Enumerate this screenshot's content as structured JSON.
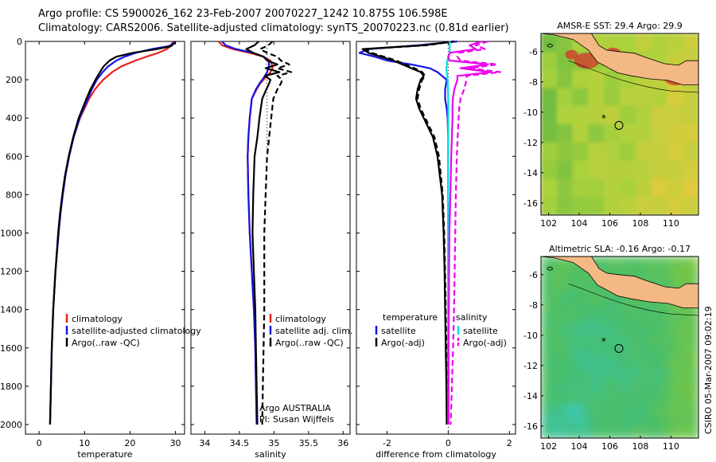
{
  "header": {
    "line1": "Argo profile: CS 5900026_162 23-Feb-2007 20070227_1242 10.875S 106.598E",
    "line2": "Climatology: CARS2006. Satellite-adjusted climatology: synTS_20070223.nc (0.81d earlier)"
  },
  "side_text": "CSIRO 05-Mar-2007 09:02:19",
  "colors": {
    "climatology": "#e6241e",
    "satellite": "#1414e6",
    "argo": "#000000",
    "salinity_satellite": "#00e0e0",
    "salinity_argo": "#ee00ee",
    "land": "#f4b884"
  },
  "chart_data": [
    {
      "type": "line",
      "id": "temperature",
      "xlabel": "temperature",
      "ylabel": "",
      "xlim": [
        -3,
        32
      ],
      "ylim": [
        2050,
        0
      ],
      "xticks": [
        0,
        10,
        20,
        30
      ],
      "xtick_labels": [
        "0",
        "10",
        "20",
        "30"
      ],
      "yticks": [
        0,
        200,
        400,
        600,
        800,
        1000,
        1200,
        1400,
        1600,
        1800,
        2000
      ],
      "ytick_labels": [
        "0",
        "200",
        "400",
        "600",
        "800",
        "1000",
        "1200",
        "1400",
        "1600",
        "1800",
        "2000"
      ],
      "depth": [
        0,
        10,
        25,
        40,
        60,
        80,
        100,
        130,
        160,
        200,
        250,
        300,
        400,
        500,
        600,
        700,
        800,
        900,
        1000,
        1200,
        1400,
        1600,
        1800,
        2000
      ],
      "series": [
        {
          "name": "climatology",
          "color": "#e6241e",
          "dash": "",
          "values": [
            29.5,
            29.3,
            28.9,
            28.1,
            26.2,
            23.6,
            21.2,
            18.1,
            16.1,
            14.1,
            12.3,
            11.0,
            9.0,
            7.6,
            6.6,
            5.8,
            5.2,
            4.7,
            4.3,
            3.6,
            3.1,
            2.8,
            2.6,
            2.4
          ]
        },
        {
          "name": "satellite-adjusted climatology",
          "color": "#1414e6",
          "dash": "",
          "values": [
            29.8,
            29.5,
            28.5,
            24.8,
            21.2,
            18.8,
            17.0,
            15.2,
            14.0,
            12.7,
            11.6,
            10.7,
            8.9,
            7.6,
            6.6,
            5.8,
            5.2,
            4.7,
            4.3,
            3.6,
            3.1,
            2.8,
            2.6,
            2.4
          ]
        },
        {
          "name": "Argo(..raw -QC)",
          "color": "#000000",
          "dash": "",
          "values": [
            29.9,
            29.7,
            29.0,
            26.0,
            20.5,
            17.0,
            15.5,
            14.2,
            13.4,
            12.4,
            11.3,
            10.4,
            8.7,
            7.5,
            6.5,
            5.7,
            5.1,
            4.6,
            4.2,
            3.6,
            3.1,
            2.8,
            2.6,
            2.4
          ]
        }
      ],
      "legend": {
        "position": "lower-center",
        "entries": [
          "climatology",
          "satellite-adjusted climatology",
          "Argo(..raw -QC)"
        ]
      }
    },
    {
      "type": "line",
      "id": "salinity",
      "xlabel": "salinity",
      "xlim": [
        33.8,
        36.1
      ],
      "ylim": [
        2050,
        0
      ],
      "xticks": [
        34,
        34.5,
        35,
        35.5,
        36
      ],
      "xtick_labels": [
        "34",
        "34.5",
        "35",
        "35.5",
        "36"
      ],
      "depth": [
        0,
        20,
        40,
        60,
        80,
        100,
        120,
        140,
        160,
        180,
        200,
        220,
        250,
        300,
        400,
        500,
        600,
        800,
        1000,
        1200,
        1400,
        1600,
        1800,
        2000
      ],
      "series": [
        {
          "name": "climatology",
          "color": "#e6241e",
          "dash": "",
          "values": [
            34.2,
            34.25,
            34.4,
            34.65,
            34.85,
            34.95,
            34.97,
            34.98,
            34.95,
            34.9,
            34.85,
            34.8,
            34.75,
            34.68,
            34.65,
            34.63,
            34.62,
            34.63,
            34.65,
            34.68,
            34.71,
            34.73,
            34.74,
            34.75
          ]
        },
        {
          "name": "satellite adj. clim.",
          "color": "#1414e6",
          "dash": "",
          "values": [
            34.25,
            34.3,
            34.45,
            34.7,
            34.85,
            34.92,
            34.93,
            34.92,
            34.9,
            34.87,
            34.83,
            34.79,
            34.74,
            34.68,
            34.65,
            34.63,
            34.62,
            34.63,
            34.65,
            34.68,
            34.71,
            34.73,
            34.74,
            34.75
          ]
        },
        {
          "name": "Argo(..raw -QC)",
          "color": "#000000",
          "dash": "",
          "values": [
            34.78,
            34.72,
            34.6,
            34.7,
            34.85,
            34.9,
            35.05,
            34.88,
            35.08,
            34.87,
            34.95,
            34.93,
            34.89,
            34.83,
            34.79,
            34.76,
            34.72,
            34.7,
            34.69,
            34.71,
            34.73,
            34.74,
            34.75,
            34.76
          ]
        },
        {
          "name": "Argo(-adj)",
          "color": "#000000",
          "dash": "7,4",
          "values": [
            34.98,
            34.92,
            34.8,
            34.9,
            35.05,
            35.1,
            35.22,
            35.05,
            35.25,
            35.05,
            35.12,
            35.1,
            35.05,
            34.99,
            34.96,
            34.93,
            34.9,
            34.88,
            34.86,
            34.86,
            34.86,
            34.85,
            34.84,
            34.83
          ]
        }
      ],
      "legend": {
        "position": "lower-right",
        "entries": [
          "climatology",
          "satellite adj. clim.",
          "Argo(..raw -QC)"
        ]
      },
      "annotation": [
        "Argo AUSTRALIA",
        "PI: Susan Wijffels"
      ]
    },
    {
      "type": "line",
      "id": "difference",
      "xlabel": "difference from climatology",
      "xlim": [
        -3,
        2.2
      ],
      "ylim": [
        2050,
        0
      ],
      "xticks": [
        -2,
        0,
        2
      ],
      "xtick_labels": [
        "-2",
        "0",
        "2"
      ],
      "depth": [
        0,
        20,
        40,
        60,
        80,
        100,
        120,
        140,
        160,
        180,
        200,
        250,
        300,
        350,
        400,
        500,
        600,
        800,
        1000,
        1200,
        1400,
        1600,
        1800,
        2000
      ],
      "series": [
        {
          "name": "temperature satellite",
          "color": "#1414e6",
          "dash": "",
          "values": [
            0.3,
            -1.0,
            -2.6,
            -2.9,
            -2.4,
            -2.0,
            -1.2,
            -0.6,
            -0.35,
            -0.2,
            -0.05,
            -0.1,
            -0.1,
            -0.05,
            -0.02,
            0.0,
            0.0,
            0.0,
            0.0,
            0.0,
            0.0,
            0.0,
            0.0,
            0.0
          ]
        },
        {
          "name": "temperature Argo(-adj)",
          "color": "#000000",
          "dash": "",
          "values": [
            0.2,
            -0.8,
            -2.8,
            -2.6,
            -2.2,
            -1.8,
            -1.5,
            -1.2,
            -0.9,
            -0.8,
            -0.9,
            -1.0,
            -1.05,
            -0.95,
            -0.8,
            -0.5,
            -0.35,
            -0.2,
            -0.15,
            -0.12,
            -0.1,
            -0.08,
            -0.06,
            -0.05
          ]
        },
        {
          "name": "temperature Argo(..raw -QC)",
          "color": "#000000",
          "dash": "7,4",
          "values": [
            0.2,
            -0.7,
            -2.7,
            -2.5,
            -2.1,
            -1.7,
            -1.4,
            -1.1,
            -0.85,
            -0.75,
            -0.85,
            -0.95,
            -1.0,
            -0.9,
            -0.75,
            -0.45,
            -0.3,
            -0.18,
            -0.13,
            -0.1,
            -0.08,
            -0.06,
            -0.05,
            -0.04
          ]
        },
        {
          "name": "salinity satellite",
          "color": "#00e0e0",
          "dash": "",
          "values": [
            0.05,
            0.05,
            0.05,
            0.05,
            0.0,
            -0.03,
            -0.04,
            -0.06,
            -0.05,
            -0.03,
            -0.02,
            -0.01,
            0.0,
            0.0,
            0.0,
            0.0,
            0.0,
            0.0,
            0.0,
            0.0,
            0.0,
            0.0,
            0.0,
            0.0
          ]
        },
        {
          "name": "salinity Argo(..raw -QC)",
          "color": "#ee00ee",
          "dash": "",
          "values": [
            1.1,
            0.7,
            0.9,
            0.05,
            0.0,
            0.05,
            1.3,
            0.4,
            1.4,
            0.3,
            0.3,
            0.2,
            0.15,
            0.14,
            0.14,
            0.12,
            0.1,
            0.07,
            0.04,
            0.03,
            0.02,
            0.01,
            0.01,
            0.01
          ]
        },
        {
          "name": "salinity Argo(-adj)",
          "color": "#ee00ee",
          "dash": "7,4",
          "values": [
            1.3,
            0.9,
            1.2,
            0.35,
            0.3,
            0.4,
            1.6,
            0.7,
            1.7,
            0.6,
            0.6,
            0.52,
            0.4,
            0.36,
            0.34,
            0.31,
            0.28,
            0.25,
            0.23,
            0.21,
            0.19,
            0.16,
            0.12,
            0.08
          ]
        }
      ],
      "legend": {
        "position": "lower-center",
        "temperature_title": "temperature",
        "salinity_title": "salinity",
        "temperature_entries": [
          "satellite",
          "Argo(-adj)"
        ],
        "salinity_entries": [
          "satellite",
          "Argo(-adj)"
        ]
      }
    },
    {
      "type": "heatmap",
      "id": "sst-map",
      "title": "AMSR-E SST: 29.4 Argo: 29.9",
      "xlim": [
        101.5,
        111.8
      ],
      "ylim": [
        -16.8,
        -4.8
      ],
      "xticks": [
        102,
        104,
        106,
        108,
        110
      ],
      "xtick_labels": [
        "102",
        "104",
        "106",
        "108",
        "110"
      ],
      "yticks": [
        -6,
        -8,
        -10,
        -12,
        -14,
        -16
      ],
      "ytick_labels": [
        "-6",
        "-8",
        "-10",
        "-12",
        "-14",
        "-16"
      ],
      "float_position": [
        106.598,
        -10.875
      ],
      "previous_position": [
        105.6,
        -10.4
      ]
    },
    {
      "type": "heatmap",
      "id": "sla-map",
      "title": "Altimetric SLA: -0.16 Argo: -0.17",
      "xlim": [
        101.5,
        111.8
      ],
      "ylim": [
        -16.8,
        -4.8
      ],
      "xticks": [
        102,
        104,
        106,
        108,
        110
      ],
      "xtick_labels": [
        "102",
        "104",
        "106",
        "108",
        "110"
      ],
      "yticks": [
        -6,
        -8,
        -10,
        -12,
        -14,
        -16
      ],
      "ytick_labels": [
        "-6",
        "-8",
        "-10",
        "-12",
        "-14",
        "-16"
      ],
      "float_position": [
        106.598,
        -10.875
      ],
      "previous_position": [
        105.6,
        -10.4
      ]
    }
  ]
}
